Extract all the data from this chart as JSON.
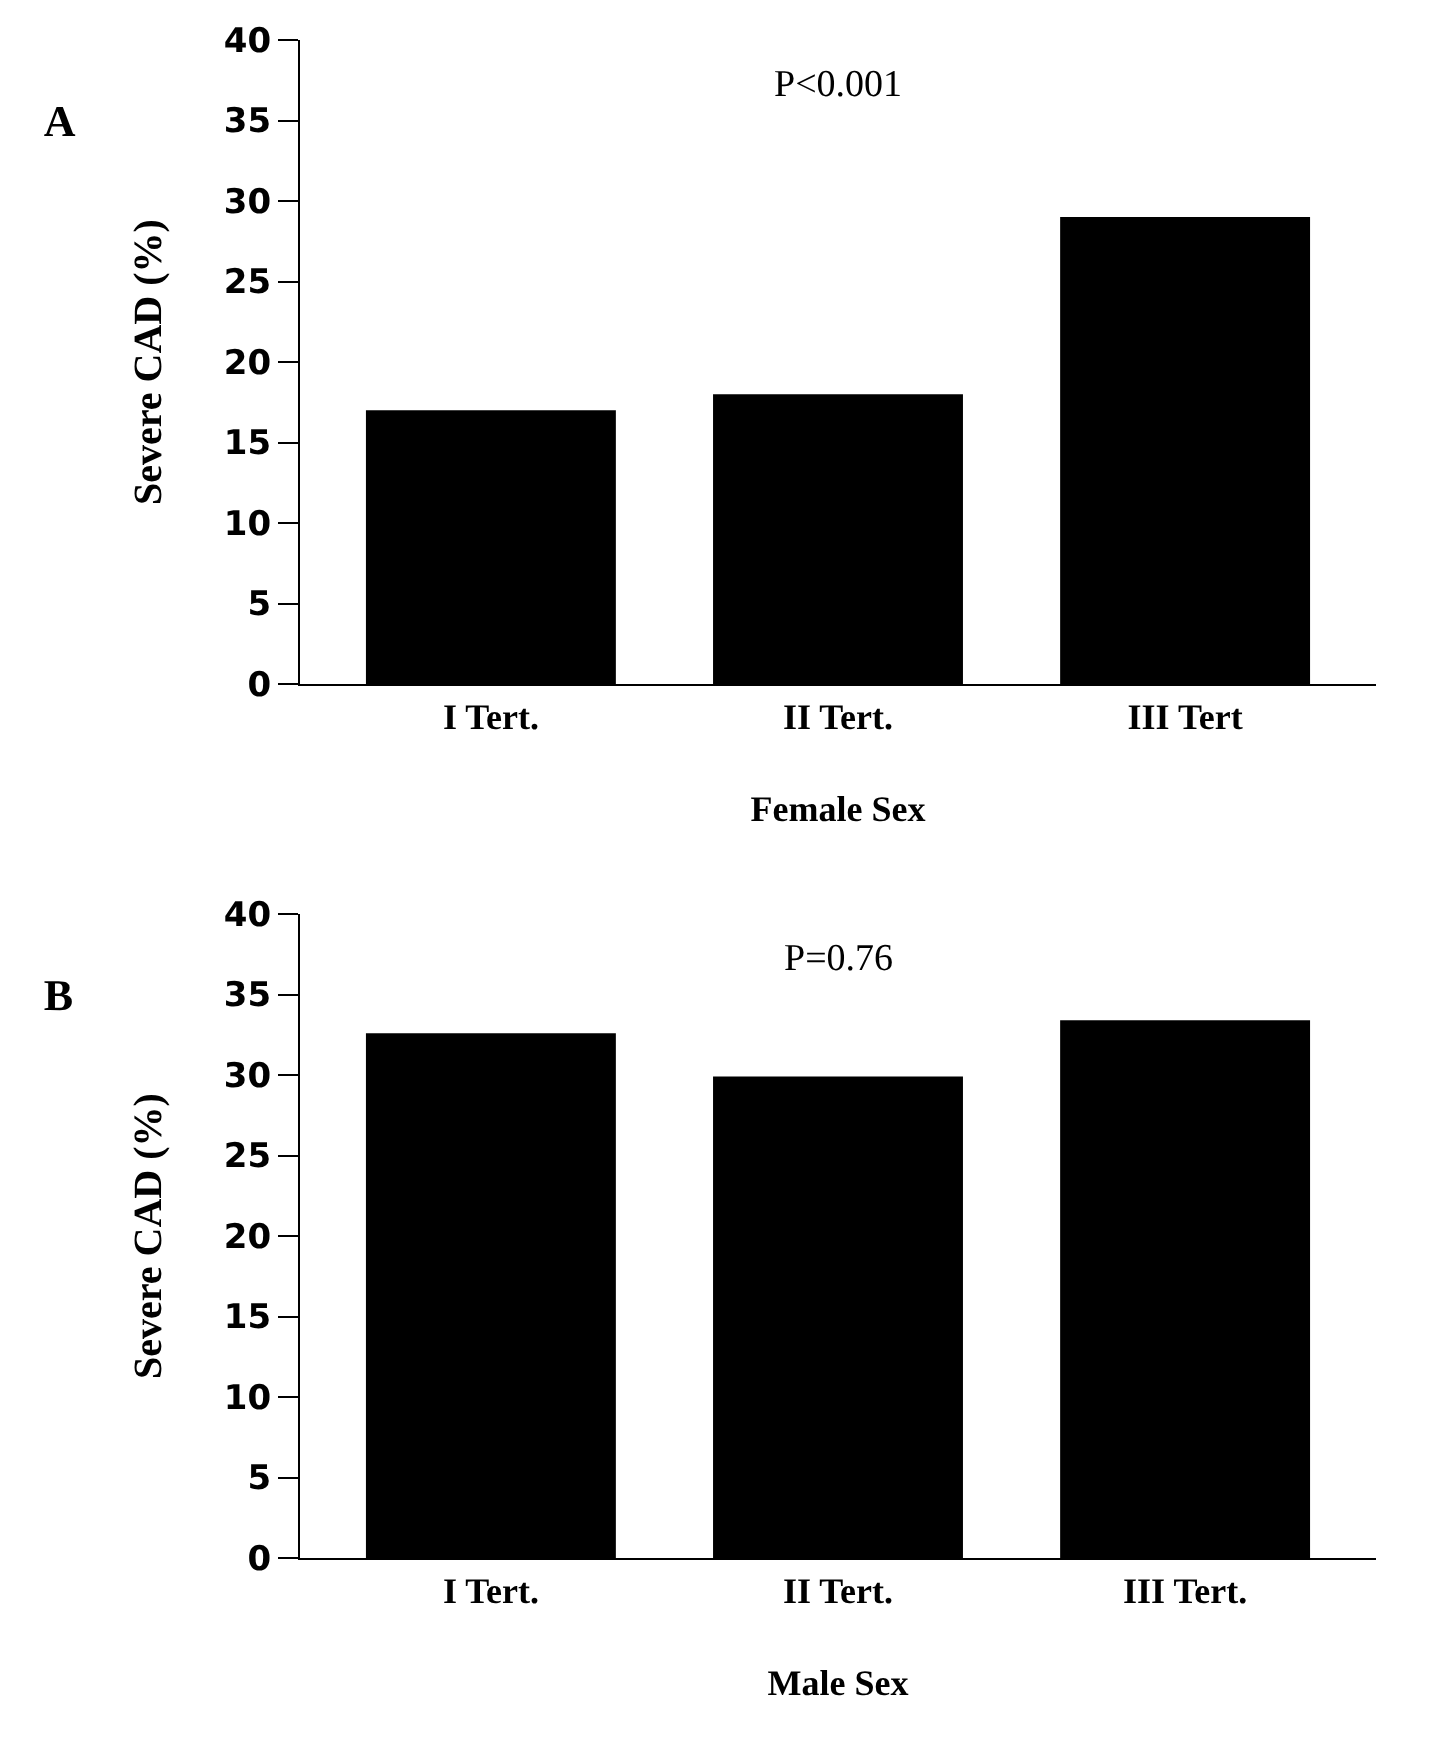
{
  "chart_data": [
    {
      "type": "bar",
      "title": "A",
      "categories": [
        "I Tert.",
        "II Tert.",
        "III Tert"
      ],
      "values": [
        17.0,
        18.0,
        29.0
      ],
      "color": "#000000",
      "xlabel": "Female Sex",
      "ylabel": "Severe CAD (%)",
      "ylim": [
        0,
        40
      ],
      "yticks": [
        0,
        5,
        10,
        15,
        20,
        25,
        30,
        35,
        40
      ],
      "grid": false,
      "annotations": [
        "P<0.001"
      ]
    },
    {
      "type": "bar",
      "title": "B",
      "categories": [
        "I Tert.",
        "II Tert.",
        "III Tert."
      ],
      "values": [
        32.6,
        29.9,
        33.4
      ],
      "color": "#000000",
      "xlabel": "Male Sex",
      "ylabel": "Severe CAD (%)",
      "ylim": [
        0,
        40
      ],
      "yticks": [
        0,
        5,
        10,
        15,
        20,
        25,
        30,
        35,
        40
      ],
      "grid": false,
      "annotations": [
        "P=0.76"
      ]
    }
  ]
}
